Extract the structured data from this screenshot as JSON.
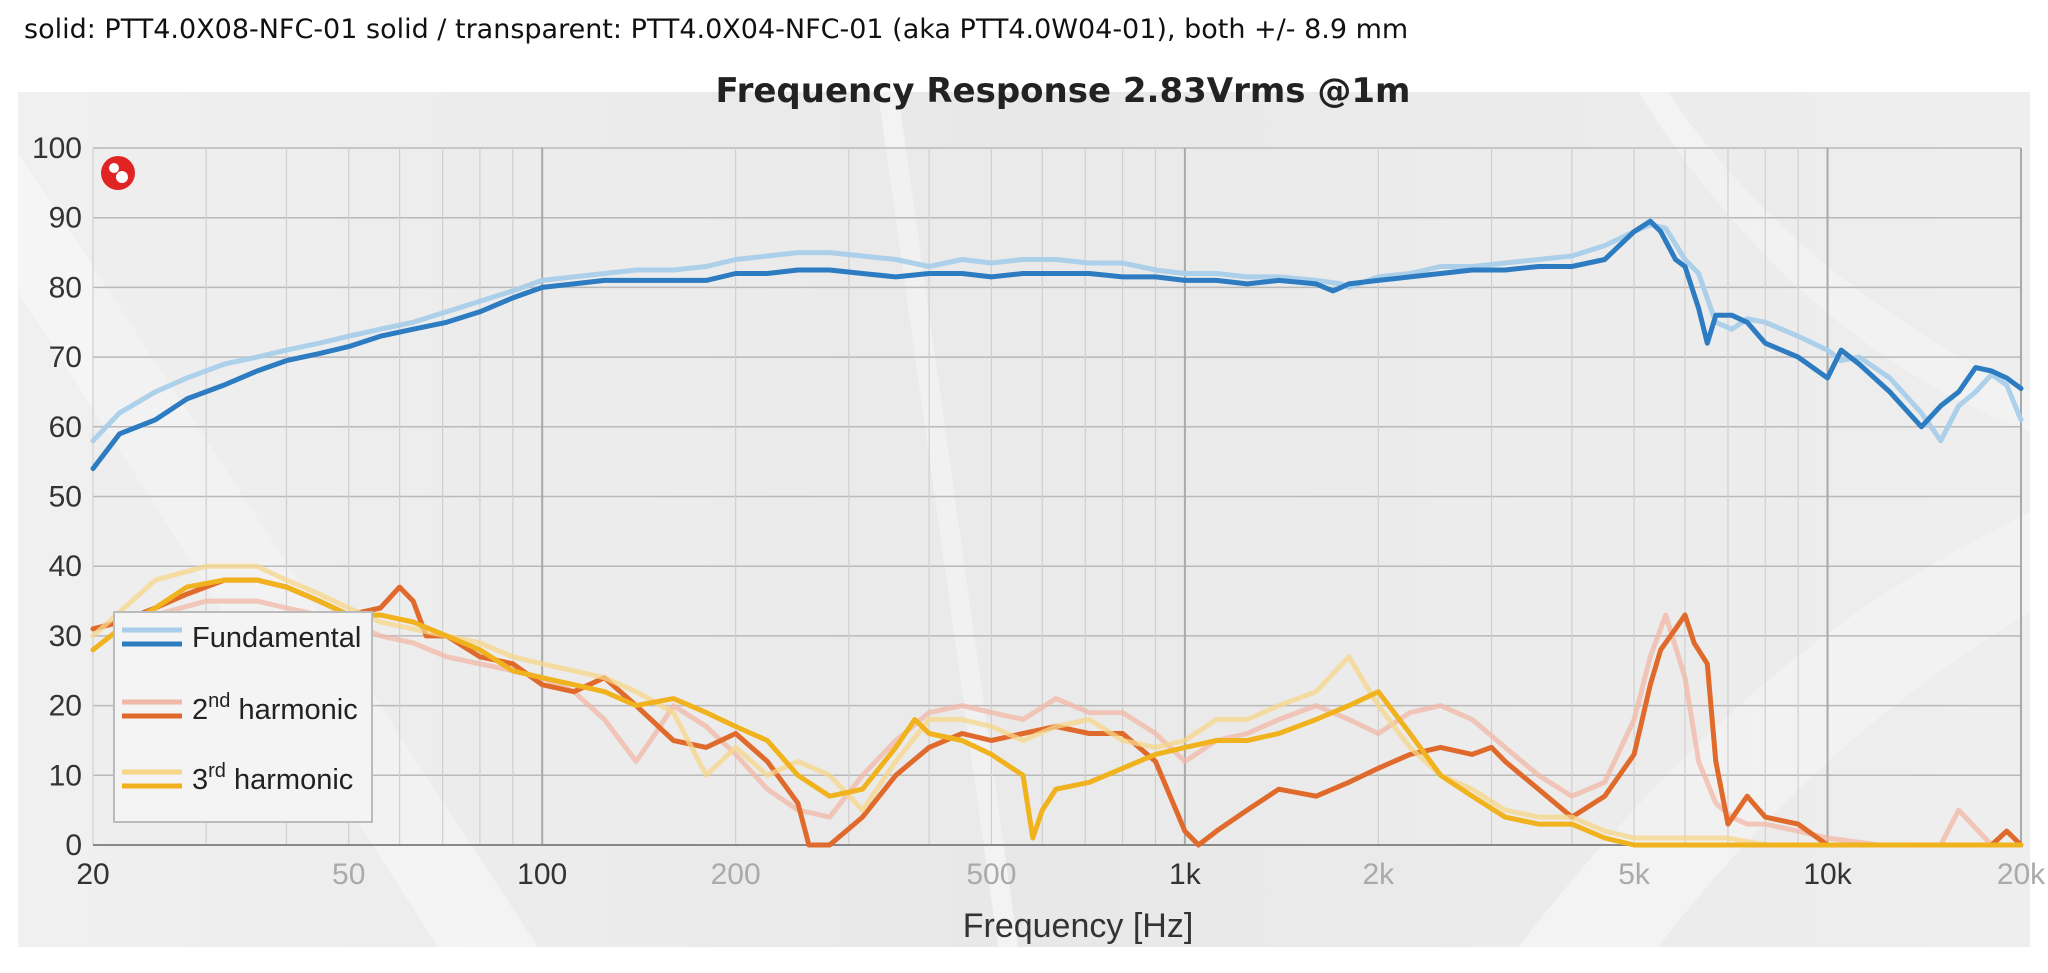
{
  "caption": "solid: PTT4.0X08-NFC-01 solid / transparent: PTT4.0X04-NFC-01 (aka PTT4.0W04-01), both +/- 8.9 mm",
  "chart_data": {
    "type": "line",
    "title": "Frequency Response 2.83Vrms @1m",
    "xlabel": "Frequency [Hz]",
    "ylabel": "",
    "xscale": "log",
    "xlim": [
      20,
      20000
    ],
    "ylim": [
      0,
      100
    ],
    "yticks": [
      "0",
      "10",
      "20",
      "30",
      "40",
      "50",
      "60",
      "70",
      "80",
      "90",
      "100"
    ],
    "xticks": [
      {
        "value": 20,
        "label": "20",
        "emphasis": true
      },
      {
        "value": 50,
        "label": "50",
        "emphasis": false
      },
      {
        "value": 100,
        "label": "100",
        "emphasis": true
      },
      {
        "value": 200,
        "label": "200",
        "emphasis": false
      },
      {
        "value": 500,
        "label": "500",
        "emphasis": false
      },
      {
        "value": 1000,
        "label": "1k",
        "emphasis": true
      },
      {
        "value": 2000,
        "label": "2k",
        "emphasis": false
      },
      {
        "value": 5000,
        "label": "5k",
        "emphasis": false
      },
      {
        "value": 10000,
        "label": "10k",
        "emphasis": true
      },
      {
        "value": 20000,
        "label": "20k",
        "emphasis": false
      }
    ],
    "grid": true,
    "legend": {
      "placement": "bottom-left",
      "entries": [
        {
          "label": "Fundamental",
          "sup": "",
          "suffix": ""
        },
        {
          "label": "2",
          "sup": "nd",
          "suffix": " harmonic"
        },
        {
          "label": "3",
          "sup": "rd",
          "suffix": " harmonic"
        }
      ]
    },
    "series": [
      {
        "key": "fund_transparent",
        "color": "#a9cdea",
        "opacity": 0.95,
        "x": [
          20,
          22,
          25,
          28,
          32,
          36,
          40,
          45,
          50,
          56,
          63,
          71,
          80,
          90,
          100,
          112,
          125,
          140,
          160,
          180,
          200,
          224,
          250,
          280,
          315,
          355,
          400,
          450,
          500,
          560,
          630,
          710,
          800,
          900,
          1000,
          1120,
          1250,
          1400,
          1600,
          1750,
          1800,
          2000,
          2240,
          2500,
          2800,
          3150,
          3550,
          4000,
          4500,
          5000,
          5300,
          5600,
          6000,
          6300,
          6700,
          7100,
          7500,
          8000,
          9000,
          10000,
          10500,
          11200,
          12500,
          14000,
          15000,
          16000,
          17000,
          18000,
          19000,
          20000
        ],
        "y": [
          58,
          62,
          65,
          67,
          69,
          70,
          71,
          72,
          73,
          74,
          75,
          76.5,
          78,
          79.5,
          81,
          81.5,
          82,
          82.5,
          82.5,
          83,
          84,
          84.5,
          85,
          85,
          84.5,
          84,
          83,
          84,
          83.5,
          84,
          84,
          83.5,
          83.5,
          82.5,
          82,
          82,
          81.5,
          81.5,
          81,
          80.5,
          80,
          81.5,
          82,
          83,
          83,
          83.5,
          84,
          84.5,
          86,
          88,
          89,
          88.5,
          84,
          82,
          75,
          74,
          75.5,
          75,
          73,
          71,
          69.5,
          70,
          67,
          62,
          58,
          63,
          65,
          67.5,
          66,
          61
        ]
      },
      {
        "key": "fund_solid",
        "color": "#2d7cc1",
        "opacity": 1,
        "x": [
          20,
          22,
          25,
          28,
          32,
          36,
          40,
          45,
          50,
          56,
          63,
          71,
          80,
          90,
          100,
          112,
          125,
          140,
          160,
          180,
          200,
          224,
          250,
          280,
          315,
          355,
          400,
          450,
          500,
          560,
          630,
          710,
          800,
          900,
          1000,
          1120,
          1250,
          1400,
          1600,
          1700,
          1750,
          1800,
          2000,
          2240,
          2500,
          2800,
          3150,
          3550,
          4000,
          4500,
          5000,
          5300,
          5500,
          5800,
          6000,
          6300,
          6500,
          6700,
          7100,
          7500,
          8000,
          9000,
          10000,
          10500,
          11200,
          12500,
          14000,
          15000,
          16000,
          17000,
          18000,
          19000,
          20000
        ],
        "y": [
          54,
          59,
          61,
          64,
          66,
          68,
          69.5,
          70.5,
          71.5,
          73,
          74,
          75,
          76.5,
          78.5,
          80,
          80.5,
          81,
          81,
          81,
          81,
          82,
          82,
          82.5,
          82.5,
          82,
          81.5,
          82,
          82,
          81.5,
          82,
          82,
          82,
          81.5,
          81.5,
          81,
          81,
          80.5,
          81,
          80.5,
          79.5,
          80,
          80.5,
          81,
          81.5,
          82,
          82.5,
          82.5,
          83,
          83,
          84,
          88,
          89.5,
          88,
          84,
          83,
          77,
          72,
          76,
          76,
          75,
          72,
          70,
          67,
          71,
          69,
          65,
          60,
          63,
          65,
          68.5,
          68,
          67,
          65.5
        ]
      },
      {
        "key": "h2_transparent",
        "color": "#f1b8a7",
        "opacity": 0.75,
        "x": [
          20,
          25,
          30,
          36,
          40,
          45,
          50,
          56,
          63,
          71,
          80,
          90,
          100,
          112,
          125,
          140,
          150,
          160,
          180,
          200,
          224,
          250,
          280,
          315,
          355,
          400,
          450,
          500,
          560,
          630,
          710,
          800,
          900,
          1000,
          1120,
          1250,
          1400,
          1600,
          1800,
          2000,
          2240,
          2500,
          2800,
          3150,
          3550,
          4000,
          4500,
          5000,
          5300,
          5600,
          6000,
          6300,
          6700,
          7100,
          7500,
          8000,
          9000,
          10000,
          12000,
          14000,
          15000,
          16000,
          18000,
          20000
        ],
        "y": [
          31,
          33,
          35,
          35,
          34,
          33,
          32,
          30,
          29,
          27,
          26,
          25,
          24,
          22,
          18,
          12,
          16,
          20,
          17,
          13,
          8,
          5,
          4,
          10,
          15,
          19,
          20,
          19,
          18,
          21,
          19,
          19,
          16,
          12,
          15,
          16,
          18,
          20,
          18,
          16,
          19,
          20,
          18,
          14,
          10,
          7,
          9,
          18,
          27,
          33,
          24,
          12,
          6,
          4,
          3,
          3,
          2,
          1,
          0,
          0,
          0,
          5,
          0,
          0
        ]
      },
      {
        "key": "h2_solid",
        "color": "#e06a2b",
        "opacity": 1,
        "x": [
          20,
          22,
          25,
          28,
          32,
          36,
          40,
          45,
          50,
          56,
          60,
          63,
          66,
          71,
          80,
          90,
          100,
          112,
          125,
          140,
          160,
          180,
          200,
          224,
          250,
          260,
          280,
          315,
          355,
          400,
          450,
          500,
          560,
          630,
          710,
          800,
          900,
          1000,
          1050,
          1120,
          1250,
          1400,
          1600,
          1800,
          2000,
          2240,
          2500,
          2800,
          3000,
          3150,
          3550,
          4000,
          4500,
          5000,
          5300,
          5500,
          5800,
          6000,
          6200,
          6500,
          6700,
          7000,
          7500,
          8000,
          9000,
          10000,
          11000,
          12000,
          13000,
          15000,
          18000,
          19000,
          20000
        ],
        "y": [
          31,
          32,
          34,
          36,
          38,
          38,
          37,
          35,
          33,
          34,
          37,
          35,
          30,
          30,
          27,
          26,
          23,
          22,
          24,
          20,
          15,
          14,
          16,
          12,
          6,
          0,
          0,
          4,
          10,
          14,
          16,
          15,
          16,
          17,
          16,
          16,
          12,
          2,
          0,
          2,
          5,
          8,
          7,
          9,
          11,
          13,
          14,
          13,
          14,
          12,
          8,
          4,
          7,
          13,
          23,
          28,
          31,
          33,
          29,
          26,
          12,
          3,
          7,
          4,
          3,
          0,
          0,
          0,
          0,
          0,
          0,
          2,
          0
        ]
      },
      {
        "key": "h3_transparent",
        "color": "#f7d68a",
        "opacity": 0.75,
        "x": [
          20,
          25,
          30,
          36,
          40,
          45,
          50,
          56,
          63,
          71,
          80,
          90,
          100,
          112,
          125,
          140,
          160,
          180,
          200,
          224,
          250,
          280,
          315,
          355,
          400,
          450,
          500,
          560,
          630,
          710,
          800,
          900,
          1000,
          1120,
          1250,
          1400,
          1600,
          1800,
          2000,
          2240,
          2500,
          2800,
          3150,
          3550,
          4000,
          4500,
          5000,
          6000,
          7000,
          8000,
          10000,
          12000,
          15000,
          20000
        ],
        "y": [
          30,
          38,
          40,
          40,
          38,
          36,
          34,
          32,
          31,
          30,
          29,
          27,
          26,
          25,
          24,
          22,
          19,
          10,
          14,
          10,
          12,
          10,
          5,
          12,
          18,
          18,
          17,
          15,
          17,
          18,
          15,
          14,
          15,
          18,
          18,
          20,
          22,
          27,
          20,
          14,
          10,
          8,
          5,
          4,
          4,
          2,
          1,
          1,
          1,
          0,
          0,
          0,
          0,
          0
        ]
      },
      {
        "key": "h3_solid",
        "color": "#f0b21d",
        "opacity": 1,
        "x": [
          20,
          22,
          25,
          28,
          32,
          36,
          40,
          45,
          50,
          56,
          63,
          71,
          80,
          90,
          100,
          112,
          125,
          140,
          160,
          180,
          200,
          224,
          250,
          280,
          315,
          355,
          380,
          400,
          450,
          500,
          560,
          580,
          600,
          630,
          710,
          800,
          900,
          1000,
          1120,
          1250,
          1400,
          1600,
          1800,
          2000,
          2240,
          2500,
          2800,
          3150,
          3550,
          4000,
          4500,
          5000,
          5500,
          6000,
          6500,
          7000,
          8000,
          10000,
          12000,
          15000,
          20000
        ],
        "y": [
          28,
          31,
          34,
          37,
          38,
          38,
          37,
          35,
          33,
          33,
          32,
          30,
          28,
          25,
          24,
          23,
          22,
          20,
          21,
          19,
          17,
          15,
          10,
          7,
          8,
          14,
          18,
          16,
          15,
          13,
          10,
          1,
          5,
          8,
          9,
          11,
          13,
          14,
          15,
          15,
          16,
          18,
          20,
          22,
          16,
          10,
          7,
          4,
          3,
          3,
          1,
          0,
          0,
          0,
          0,
          0,
          0,
          0,
          0,
          0,
          0
        ]
      }
    ]
  }
}
